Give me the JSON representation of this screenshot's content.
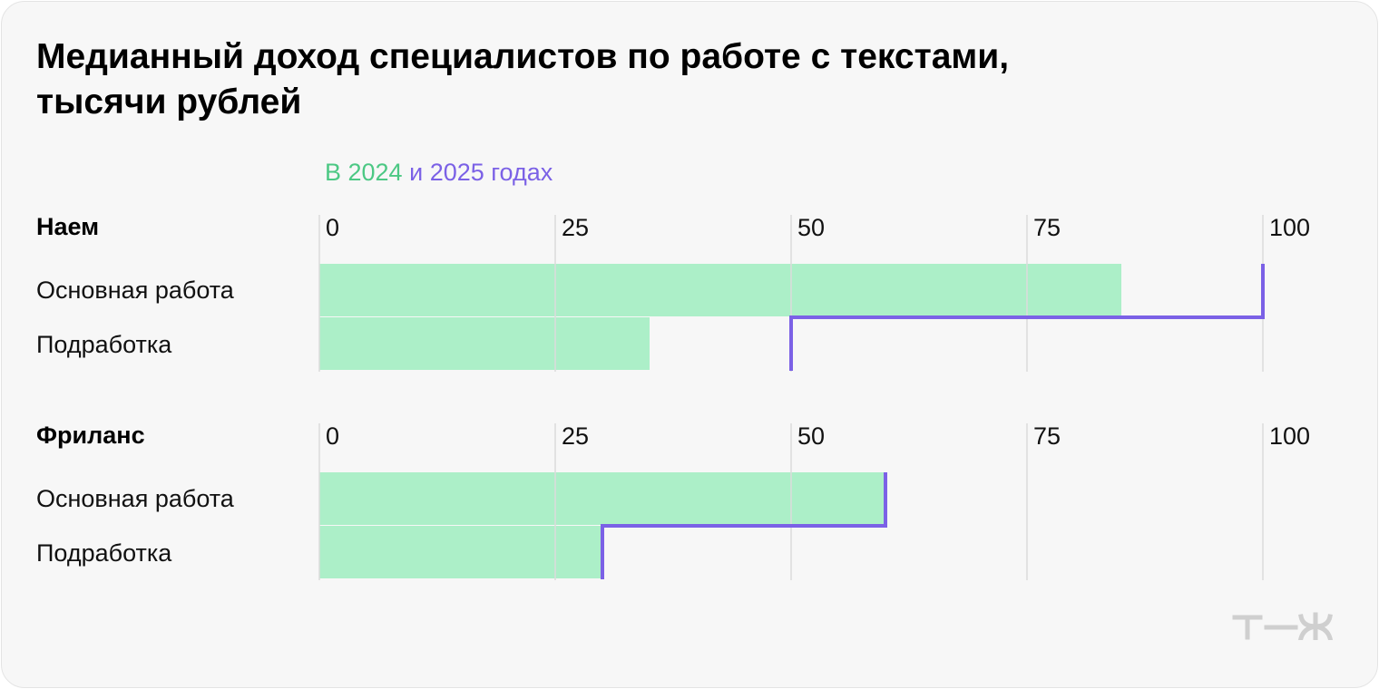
{
  "title_line1": "Медианный доход специалистов по работе с текстами,",
  "title_line2": "тысячи рублей",
  "legend": {
    "part1": "В 2024",
    "sep": "и",
    "part2": "2025 годах"
  },
  "colors": {
    "bar_2024": "#acefc8",
    "line_2025": "#7b61e6",
    "grid": "#dcdcdc",
    "legend_green": "#4cc884",
    "logo": "#cfcfcf"
  },
  "logo_icon": "tzh-logo-icon",
  "chart_data": [
    {
      "type": "bar",
      "title": "Наем",
      "orientation": "horizontal",
      "categories": [
        "Основная работа",
        "Подработка"
      ],
      "series": [
        {
          "name": "2024",
          "values": [
            85,
            35
          ]
        },
        {
          "name": "2025",
          "values": [
            100,
            50
          ]
        }
      ],
      "xlim": [
        0,
        100
      ],
      "ticks": [
        0,
        25,
        50,
        75,
        100
      ],
      "grid": true
    },
    {
      "type": "bar",
      "title": "Фриланс",
      "orientation": "horizontal",
      "categories": [
        "Основная работа",
        "Подработка"
      ],
      "series": [
        {
          "name": "2024",
          "values": [
            60,
            30
          ]
        },
        {
          "name": "2025",
          "values": [
            60,
            30
          ]
        }
      ],
      "xlim": [
        0,
        100
      ],
      "ticks": [
        0,
        25,
        50,
        75,
        100
      ],
      "grid": true
    }
  ]
}
